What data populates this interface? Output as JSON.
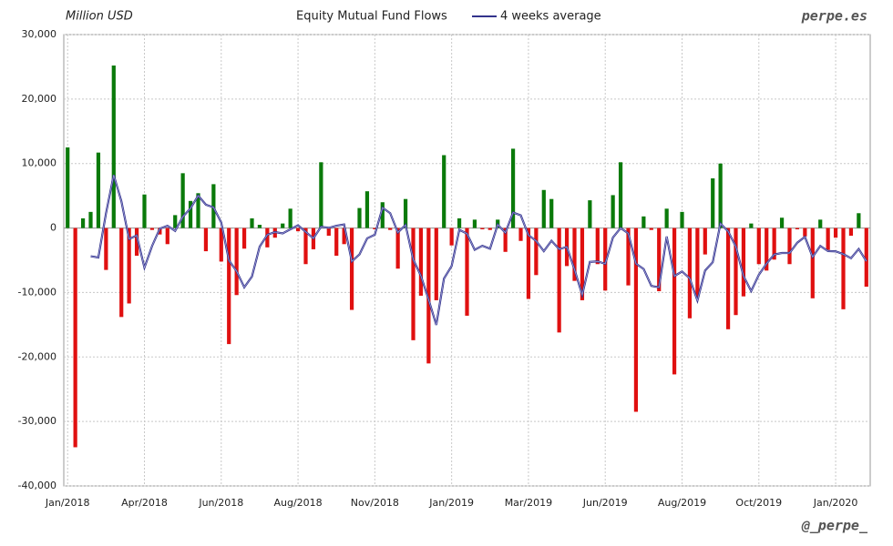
{
  "chart_data": {
    "type": "bar",
    "title": "Equity Mutual Fund Flows",
    "unit_label": "Million USD",
    "watermark": "perpe.es",
    "credit": "@_perpe_",
    "categories": [
      "Jan/2018",
      null,
      null,
      null,
      null,
      null,
      null,
      null,
      null,
      null,
      "Apr/2018",
      null,
      null,
      null,
      null,
      null,
      null,
      null,
      null,
      null,
      "Jun/2018",
      null,
      null,
      null,
      null,
      null,
      null,
      null,
      null,
      null,
      "Aug/2018",
      null,
      null,
      null,
      null,
      null,
      null,
      null,
      null,
      null,
      "Nov/2018",
      null,
      null,
      null,
      null,
      null,
      null,
      null,
      null,
      null,
      "Jan/2019",
      null,
      null,
      null,
      null,
      null,
      null,
      null,
      null,
      null,
      "Mar/2019",
      null,
      null,
      null,
      null,
      null,
      null,
      null,
      null,
      null,
      "Jun/2019",
      null,
      null,
      null,
      null,
      null,
      null,
      null,
      null,
      null,
      "Aug/2019",
      null,
      null,
      null,
      null,
      null,
      null,
      null,
      null,
      null,
      "Oct/2019",
      null,
      null,
      null,
      null,
      null,
      null,
      null,
      null,
      null,
      "Jan/2020",
      null,
      null,
      null,
      null
    ],
    "values": [
      12500,
      -34000,
      1500,
      2500,
      11700,
      -6500,
      25200,
      -13800,
      -11700,
      -4300,
      5200,
      -300,
      -1000,
      -2500,
      2000,
      8500,
      4200,
      5400,
      -3600,
      6800,
      -5200,
      -18000,
      -10400,
      -3200,
      1500,
      500,
      -3000,
      -1500,
      700,
      3000,
      -500,
      -5600,
      -3300,
      10200,
      -1200,
      -4300,
      -2500,
      -12700,
      3100,
      5700,
      -200,
      4000,
      -300,
      -6300,
      4500,
      -17400,
      -10500,
      -21000,
      -11200,
      11300,
      -2700,
      1500,
      -13600,
      1300,
      -200,
      -300,
      1300,
      -3700,
      12300,
      -2000,
      -11000,
      -7300,
      5900,
      4500,
      -16200,
      -5900,
      -8200,
      -11200,
      4300,
      -5600,
      -9700,
      5100,
      10200,
      -8900,
      -28500,
      1800,
      -300,
      -9800,
      3000,
      -22700,
      2500,
      -14000,
      -10800,
      -4100,
      7700,
      10000,
      -15700,
      -13500,
      -10600,
      700,
      -5600,
      -6600,
      -4900,
      1600,
      -5600,
      -200,
      -1300,
      -10900,
      1300,
      -3400,
      -1500,
      -12600,
      -1200,
      2300,
      -9100
    ],
    "positive_color": "#0a7a0a",
    "negative_color": "#e01010",
    "line": {
      "name": "4 weeks average",
      "color": "#33338c",
      "values": [
        null,
        null,
        null,
        -4375,
        -4575,
        2300,
        8225,
        4150,
        -1700,
        -1150,
        -6150,
        -2775,
        -100,
        350,
        -450,
        1750,
        3050,
        5025,
        3625,
        3200,
        850,
        -5000,
        -6700,
        -9200,
        -7525,
        -2900,
        -1050,
        -625,
        -825,
        -200,
        425,
        -600,
        -1600,
        200,
        25,
        350,
        550,
        -5175,
        -4100,
        -1600,
        -1025,
        3150,
        2300,
        -700,
        475,
        -4875,
        -7425,
        -11100,
        -15025,
        -7850,
        -5900,
        -275,
        -875,
        -3375,
        -2750,
        -3200,
        525,
        -725,
        2400,
        1975,
        -1100,
        -2000,
        -3600,
        -1975,
        -3275,
        -2925,
        -6450,
        -10375,
        -5250,
        -5175,
        -5550,
        -1475,
        0,
        -825,
        -5525,
        -6350,
        -8975,
        -9200,
        -1325,
        -7450,
        -6750,
        -7800,
        -11250,
        -6600,
        -5300,
        700,
        -525,
        -2875,
        -7450,
        -9775,
        -7250,
        -5525,
        -4100,
        -3875,
        -3875,
        -2275,
        -1375,
        -4500,
        -2775,
        -3575,
        -3625,
        -4050,
        -4675,
        -3250,
        -5150
      ]
    },
    "ylim": [
      -40000,
      30000
    ],
    "yticks": [
      {
        "value": -40000,
        "label": "-40,000"
      },
      {
        "value": -30000,
        "label": "-30,000"
      },
      {
        "value": -20000,
        "label": "-20,000"
      },
      {
        "value": -10000,
        "label": "-10,000"
      },
      0,
      {
        "value": 10000,
        "label": "10,000"
      },
      {
        "value": 20000,
        "label": "20,000"
      },
      {
        "value": 30000,
        "label": "30,000"
      }
    ],
    "grid": true
  }
}
